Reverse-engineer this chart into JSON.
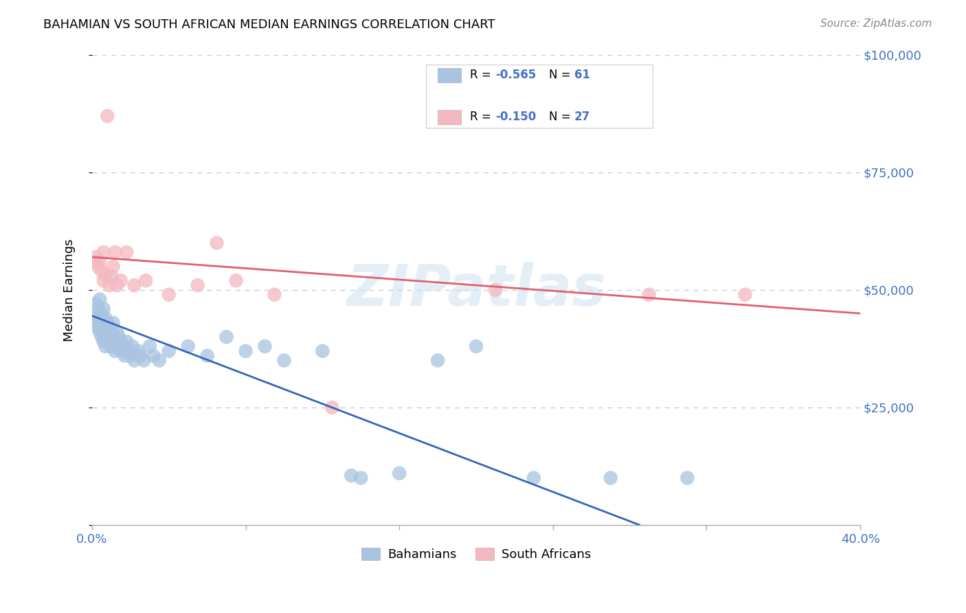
{
  "title": "BAHAMIAN VS SOUTH AFRICAN MEDIAN EARNINGS CORRELATION CHART",
  "source": "Source: ZipAtlas.com",
  "tick_color": "#4472c4",
  "ylabel": "Median Earnings",
  "xlim": [
    0.0,
    0.4
  ],
  "ylim": [
    0,
    100000
  ],
  "yticks": [
    0,
    25000,
    50000,
    75000,
    100000
  ],
  "xticks": [
    0.0,
    0.08,
    0.16,
    0.24,
    0.32,
    0.4
  ],
  "legend_r_blue": "R = -0.565",
  "legend_n_blue": "N = 61",
  "legend_r_pink": "R = -0.150",
  "legend_n_pink": "N = 27",
  "blue_color": "#a8c4e0",
  "pink_color": "#f4b8c0",
  "blue_line_color": "#3366bb",
  "pink_line_color": "#e06070",
  "watermark": "ZIPatlas",
  "background_color": "#ffffff",
  "grid_color": "#cccccc",
  "blue_scatter_x": [
    0.001,
    0.002,
    0.002,
    0.003,
    0.003,
    0.004,
    0.004,
    0.004,
    0.005,
    0.005,
    0.005,
    0.006,
    0.006,
    0.006,
    0.007,
    0.007,
    0.007,
    0.008,
    0.008,
    0.009,
    0.009,
    0.01,
    0.01,
    0.011,
    0.011,
    0.012,
    0.012,
    0.013,
    0.013,
    0.014,
    0.015,
    0.015,
    0.016,
    0.017,
    0.018,
    0.019,
    0.02,
    0.021,
    0.022,
    0.024,
    0.025,
    0.027,
    0.03,
    0.032,
    0.035,
    0.04,
    0.05,
    0.06,
    0.07,
    0.08,
    0.09,
    0.1,
    0.12,
    0.135,
    0.14,
    0.16,
    0.18,
    0.2,
    0.23,
    0.27,
    0.31
  ],
  "blue_scatter_y": [
    44000,
    47000,
    43000,
    46000,
    42000,
    48000,
    44000,
    41000,
    45000,
    43000,
    40000,
    46000,
    42000,
    39000,
    44000,
    41000,
    38000,
    43000,
    40000,
    42000,
    39000,
    41000,
    38000,
    43000,
    40000,
    39000,
    37000,
    41000,
    38000,
    40000,
    39000,
    37000,
    38000,
    36000,
    39000,
    37000,
    36000,
    38000,
    35000,
    37000,
    36000,
    35000,
    38000,
    36000,
    35000,
    37000,
    38000,
    36000,
    40000,
    37000,
    38000,
    35000,
    37000,
    10500,
    10000,
    11000,
    35000,
    38000,
    10000,
    10000,
    10000
  ],
  "pink_scatter_x": [
    0.001,
    0.002,
    0.003,
    0.004,
    0.005,
    0.006,
    0.006,
    0.007,
    0.008,
    0.009,
    0.01,
    0.011,
    0.012,
    0.013,
    0.015,
    0.018,
    0.022,
    0.028,
    0.04,
    0.055,
    0.065,
    0.075,
    0.095,
    0.125,
    0.21,
    0.29,
    0.34
  ],
  "pink_scatter_y": [
    56000,
    57000,
    55000,
    56000,
    54000,
    52000,
    58000,
    53000,
    87000,
    51000,
    53000,
    55000,
    58000,
    51000,
    52000,
    58000,
    51000,
    52000,
    49000,
    51000,
    60000,
    52000,
    49000,
    25000,
    50000,
    49000,
    49000
  ],
  "blue_line_x": [
    0.0,
    0.285
  ],
  "blue_line_y": [
    44500,
    0
  ],
  "pink_line_x": [
    0.0,
    0.4
  ],
  "pink_line_y": [
    57000,
    45000
  ]
}
